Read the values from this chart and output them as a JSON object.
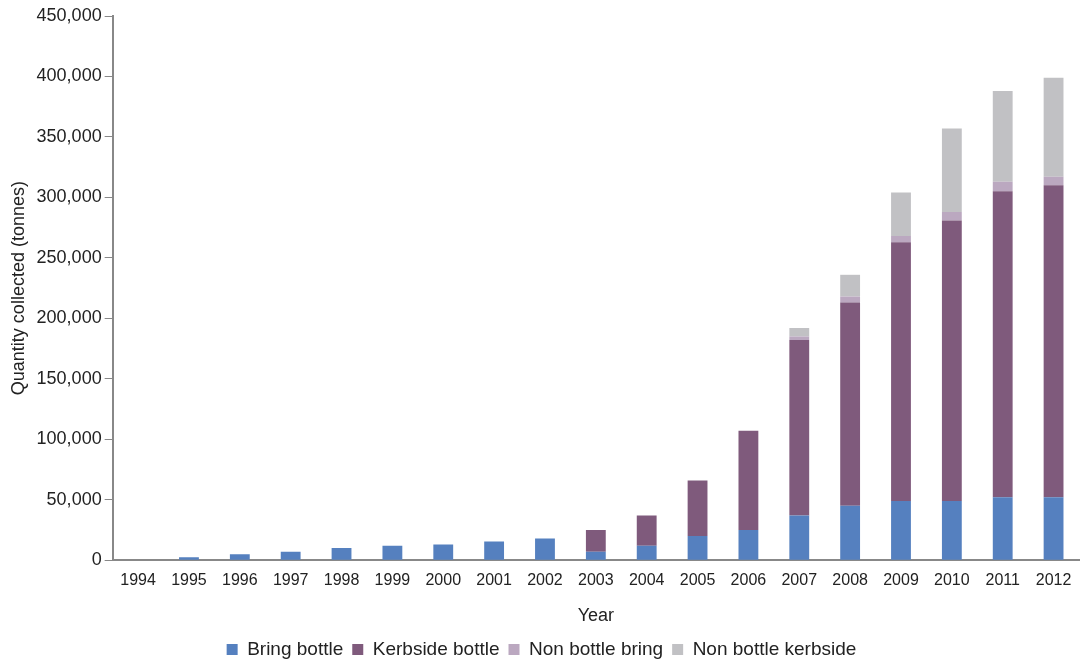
{
  "chart_data": {
    "type": "bar",
    "stacked": true,
    "xlabel": "Year",
    "ylabel": "Quantity collected (tonnes)",
    "categories": [
      "1994",
      "1995",
      "1996",
      "1997",
      "1998",
      "1999",
      "2000",
      "2001",
      "2002",
      "2003",
      "2004",
      "2005",
      "2006",
      "2007",
      "2008",
      "2009",
      "2010",
      "2011",
      "2012"
    ],
    "series": [
      {
        "name": "Bring bottle",
        "color": "#5580bf",
        "values": [
          0,
          2500,
          5000,
          7000,
          10000,
          12000,
          13000,
          15500,
          18000,
          7000,
          12000,
          20000,
          25000,
          37000,
          45000,
          49000,
          49000,
          52000,
          52000
        ]
      },
      {
        "name": "Kerbside bottle",
        "color": "#7f5a7c",
        "values": [
          0,
          0,
          0,
          0,
          0,
          0,
          0,
          0,
          0,
          18000,
          25000,
          46000,
          82000,
          145000,
          168000,
          214000,
          232000,
          253000,
          258000
        ]
      },
      {
        "name": "Non bottle bring",
        "color": "#bba8c0",
        "values": [
          0,
          0,
          0,
          0,
          0,
          0,
          0,
          0,
          0,
          0,
          0,
          0,
          0,
          3000,
          5000,
          5000,
          7000,
          8000,
          7000
        ]
      },
      {
        "name": "Non bottle kerbside",
        "color": "#c1c1c4",
        "values": [
          0,
          0,
          0,
          0,
          0,
          0,
          0,
          0,
          0,
          0,
          0,
          0,
          0,
          7000,
          18000,
          36000,
          69000,
          75000,
          82000
        ]
      }
    ],
    "ylim": [
      0,
      450000
    ],
    "yticks": [
      {
        "value": 0,
        "label": "0"
      },
      {
        "value": 50000,
        "label": "50,000"
      },
      {
        "value": 100000,
        "label": "100,000"
      },
      {
        "value": 150000,
        "label": "150,000"
      },
      {
        "value": 200000,
        "label": "200,000"
      },
      {
        "value": 250000,
        "label": "250,000"
      },
      {
        "value": 300000,
        "label": "300,000"
      },
      {
        "value": 350000,
        "label": "350,000"
      },
      {
        "value": 400000,
        "label": "400,000"
      },
      {
        "value": 450000,
        "label": "450,000"
      }
    ],
    "grid": false,
    "legend": "bottom"
  }
}
